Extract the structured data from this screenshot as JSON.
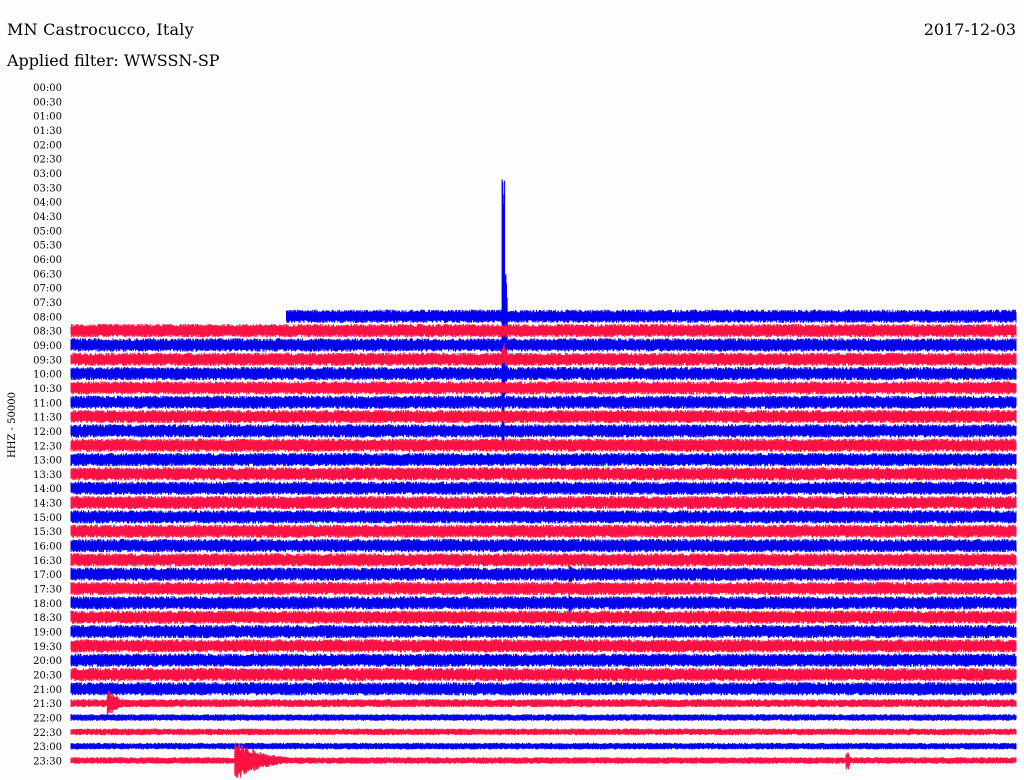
{
  "header": {
    "station": "MN Castrocucco, Italy",
    "date": "2017-12-03",
    "filter": "Applied filter: WWSSN-SP"
  },
  "chart_data": {
    "type": "line",
    "title": "MN Castrocucco, Italy",
    "ylabel": "HHZ - 50000",
    "time_labels": [
      "00:00",
      "00:30",
      "01:00",
      "01:30",
      "02:00",
      "02:30",
      "03:00",
      "03:30",
      "04:00",
      "04:30",
      "05:00",
      "05:30",
      "06:00",
      "06:30",
      "07:00",
      "07:30",
      "08:00",
      "08:30",
      "09:00",
      "09:30",
      "10:00",
      "10:30",
      "11:00",
      "11:30",
      "12:00",
      "12:30",
      "13:00",
      "13:30",
      "14:00",
      "14:30",
      "15:00",
      "15:30",
      "16:00",
      "16:30",
      "17:00",
      "17:30",
      "18:00",
      "18:30",
      "19:00",
      "19:30",
      "20:00",
      "20:30",
      "21:00",
      "21:30",
      "22:00",
      "22:30",
      "23:00",
      "23:30"
    ],
    "colors": [
      "#0000ee",
      "#ff1144"
    ],
    "data_start_fraction_at_08_00": 0.228,
    "trace_noise_amplitude": {
      "08:00": 0.9,
      "08:30": 0.9,
      "09:00": 0.9,
      "09:30": 0.9,
      "10:00": 0.9,
      "10:30": 0.9,
      "11:00": 0.9,
      "11:30": 0.9,
      "12:00": 0.9,
      "12:30": 0.9,
      "13:00": 0.9,
      "13:30": 0.9,
      "14:00": 0.9,
      "14:30": 0.9,
      "15:00": 0.9,
      "15:30": 0.9,
      "16:00": 0.9,
      "16:30": 0.9,
      "17:00": 0.9,
      "17:30": 0.9,
      "18:00": 0.9,
      "18:30": 0.9,
      "19:00": 0.9,
      "19:30": 0.9,
      "20:00": 0.9,
      "20:30": 0.9,
      "21:00": 0.9,
      "21:30": 0.55,
      "22:00": 0.45,
      "22:30": 0.45,
      "23:00": 0.45,
      "23:30": 0.45
    },
    "events": [
      {
        "row": "08:00",
        "position": 0.458,
        "amplitude": 19,
        "duration": 0.004
      },
      {
        "row": "09:30",
        "position": 0.458,
        "amplitude": 2.2,
        "duration": 0.012
      },
      {
        "row": "10:00",
        "position": 0.458,
        "amplitude": 1.5,
        "duration": 0.02
      },
      {
        "row": "10:00",
        "position": 0.594,
        "amplitude": 0.6,
        "duration": 0.004
      },
      {
        "row": "17:00",
        "position": 0.529,
        "amplitude": 1.2,
        "duration": 0.003
      },
      {
        "row": "18:00",
        "position": 0.529,
        "amplitude": 1.4,
        "duration": 0.012
      },
      {
        "row": "14:30",
        "position": 0.852,
        "amplitude": 0.5,
        "duration": 0.004
      },
      {
        "row": "21:30",
        "position": 0.04,
        "amplitude": 1.7,
        "duration": 0.03
      },
      {
        "row": "23:30",
        "position": 0.175,
        "amplitude": 2.6,
        "duration": 0.07
      },
      {
        "row": "23:30",
        "position": 0.822,
        "amplitude": 1.2,
        "duration": 0.008
      }
    ]
  }
}
